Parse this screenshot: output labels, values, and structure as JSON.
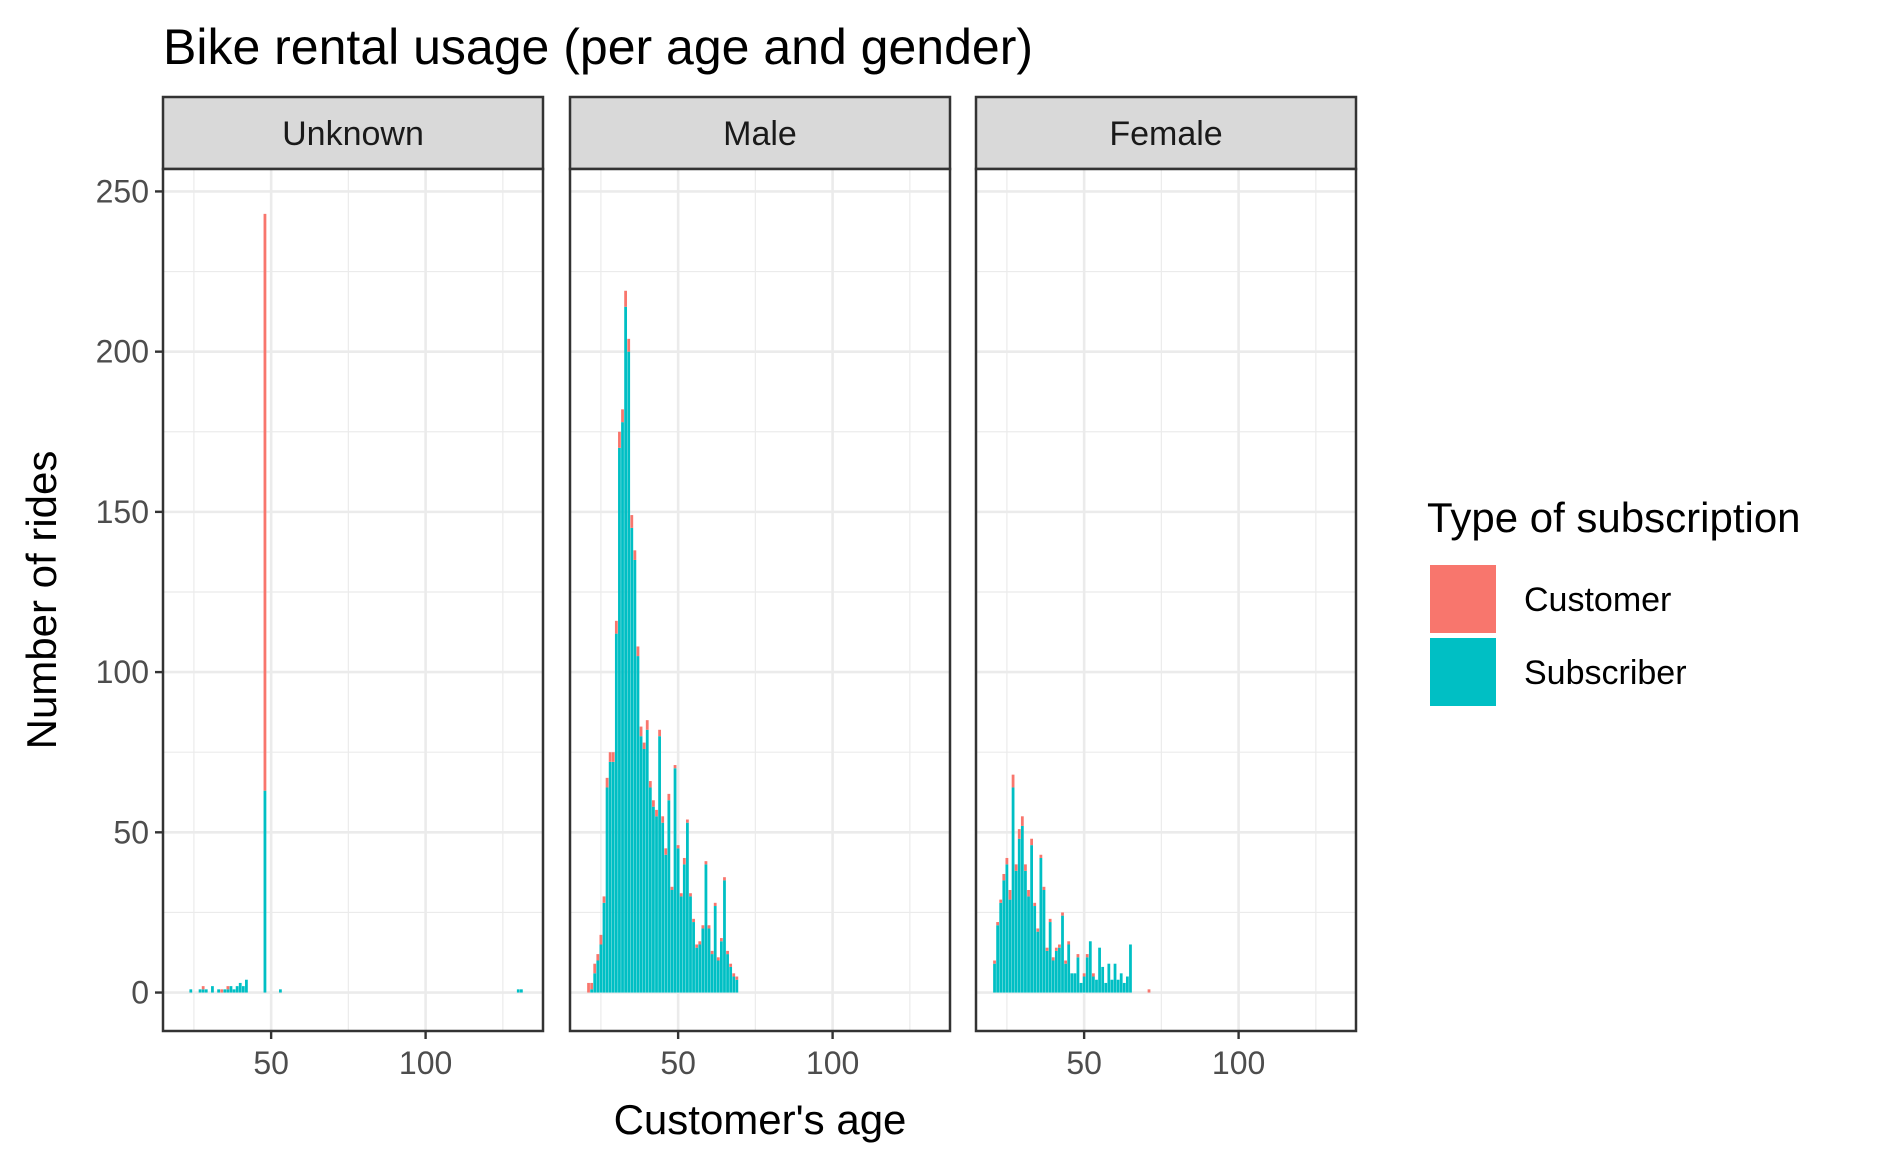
{
  "chart_data": {
    "type": "bar",
    "stacked": true,
    "title": "Bike rental usage (per age and gender)",
    "xlabel": "Customer's age",
    "ylabel": "Number of rides",
    "xlim": [
      15,
      138
    ],
    "ylim": [
      -12,
      257
    ],
    "x_ticks": [
      50,
      100
    ],
    "y_ticks": [
      0,
      50,
      100,
      150,
      200,
      250
    ],
    "grid": true,
    "legend": {
      "title": "Type of subscription",
      "position": "right",
      "entries": [
        {
          "name": "Customer",
          "color": "#F8766D"
        },
        {
          "name": "Subscriber",
          "color": "#00BFC4"
        }
      ]
    },
    "panels": [
      {
        "label": "Unknown",
        "x": [
          24,
          27,
          28,
          29,
          31,
          33,
          34,
          35,
          36,
          37,
          38,
          39,
          40,
          41,
          42,
          48,
          53,
          130,
          131
        ],
        "series": [
          {
            "name": "Customer",
            "values": [
              0,
              0,
              1,
              0,
              0,
              0,
              1,
              0,
              1,
              0,
              0,
              0,
              0,
              0,
              0,
              180,
              0,
              0,
              0
            ]
          },
          {
            "name": "Subscriber",
            "values": [
              1,
              1,
              1,
              1,
              2,
              1,
              0,
              1,
              1,
              2,
              1,
              2,
              3,
              2,
              4,
              63,
              1,
              1,
              1
            ]
          }
        ]
      },
      {
        "label": "Male",
        "x": [
          21,
          22,
          23,
          24,
          25,
          26,
          27,
          28,
          29,
          30,
          31,
          32,
          33,
          34,
          35,
          36,
          37,
          38,
          39,
          40,
          41,
          42,
          43,
          44,
          45,
          46,
          47,
          48,
          49,
          50,
          51,
          52,
          53,
          54,
          55,
          56,
          57,
          58,
          59,
          60,
          61,
          62,
          63,
          64,
          65,
          66,
          67,
          68,
          69
        ],
        "series": [
          {
            "name": "Customer",
            "values": [
              3,
              2,
              3,
              2,
              3,
              2,
              3,
              3,
              3,
              4,
              5,
              4,
              5,
              4,
              4,
              3,
              3,
              3,
              2,
              3,
              2,
              2,
              2,
              2,
              2,
              2,
              2,
              1,
              1,
              1,
              1,
              2,
              1,
              1,
              1,
              1,
              1,
              1,
              1,
              1,
              1,
              1,
              1,
              1,
              1,
              1,
              1,
              1,
              1
            ]
          },
          {
            "name": "Subscriber",
            "values": [
              0,
              1,
              6,
              10,
              15,
              28,
              64,
              72,
              72,
              112,
              170,
              178,
              214,
              200,
              145,
              135,
              105,
              80,
              76,
              82,
              64,
              58,
              55,
              80,
              53,
              43,
              60,
              32,
              70,
              45,
              30,
              40,
              53,
              30,
              22,
              14,
              15,
              20,
              40,
              20,
              12,
              27,
              10,
              16,
              35,
              12,
              8,
              5,
              4
            ]
          }
        ]
      },
      {
        "label": "Female",
        "x": [
          21,
          22,
          23,
          24,
          25,
          26,
          27,
          28,
          29,
          30,
          31,
          32,
          33,
          34,
          35,
          36,
          37,
          38,
          39,
          40,
          41,
          42,
          43,
          44,
          45,
          46,
          47,
          48,
          49,
          50,
          51,
          52,
          53,
          54,
          55,
          56,
          57,
          58,
          59,
          60,
          61,
          62,
          63,
          64,
          65,
          71
        ],
        "series": [
          {
            "name": "Customer",
            "values": [
              1,
              1,
              1,
              2,
              2,
              3,
              4,
              2,
              3,
              3,
              2,
              2,
              2,
              1,
              1,
              1,
              1,
              1,
              1,
              1,
              1,
              1,
              1,
              1,
              1,
              0,
              0,
              1,
              0,
              1,
              1,
              0,
              1,
              0,
              0,
              0,
              0,
              0,
              0,
              0,
              0,
              0,
              0,
              0,
              0,
              1
            ]
          },
          {
            "name": "Subscriber",
            "values": [
              9,
              21,
              28,
              35,
              40,
              29,
              64,
              38,
              48,
              52,
              38,
              30,
              46,
              27,
              19,
              42,
              32,
              13,
              22,
              10,
              13,
              14,
              24,
              9,
              15,
              6,
              6,
              11,
              3,
              5,
              11,
              16,
              5,
              4,
              14,
              8,
              3,
              9,
              4,
              9,
              4,
              6,
              3,
              5,
              15,
              0
            ]
          }
        ]
      }
    ]
  }
}
